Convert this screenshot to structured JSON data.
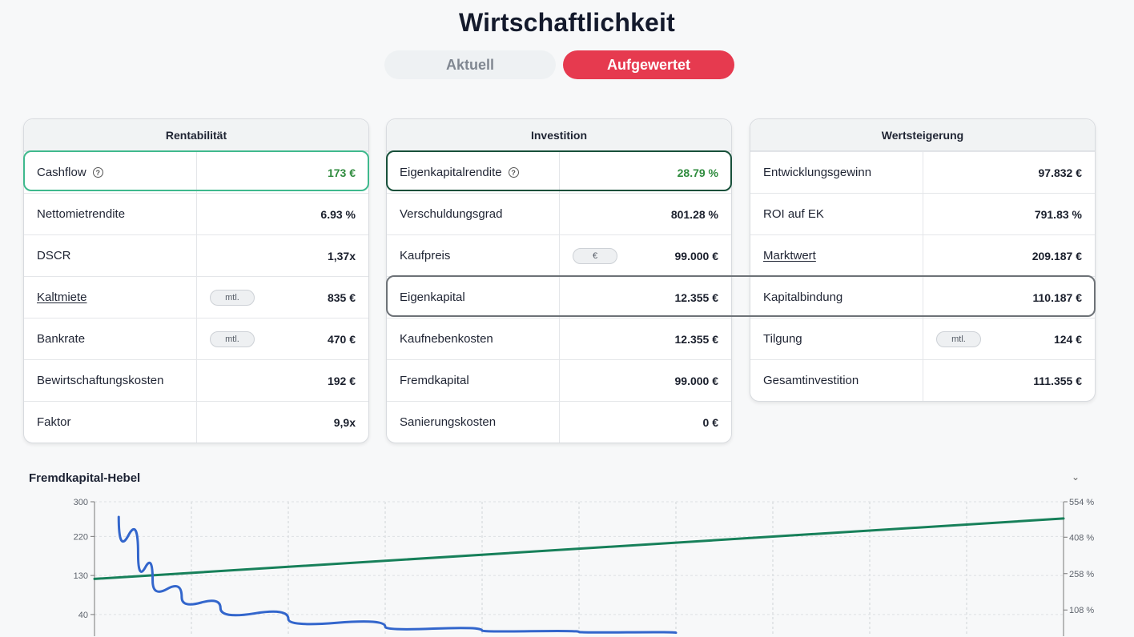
{
  "page": {
    "title": "Wirtschaftlichkeit"
  },
  "toggle": {
    "current": "Aktuell",
    "upgraded": "Aufgewertet"
  },
  "cards": [
    {
      "title": "Rentabilität",
      "rows": [
        {
          "label": "Cashflow",
          "value": "173 €",
          "info": true,
          "value_color": "green"
        },
        {
          "label": "Nettomietrendite",
          "value": "6.93 %"
        },
        {
          "label": "DSCR",
          "value": "1,37x"
        },
        {
          "label": "Kaltmiete",
          "value": "835 €",
          "link": true,
          "pill": "mtl."
        },
        {
          "label": "Bankrate",
          "value": "470 €",
          "pill": "mtl."
        },
        {
          "label": "Bewirtschaftungskosten",
          "value": "192 €"
        },
        {
          "label": "Faktor",
          "value": "9,9x"
        }
      ]
    },
    {
      "title": "Investition",
      "rows": [
        {
          "label": "Eigenkapitalrendite",
          "value": "28.79 %",
          "info": true,
          "value_color": "green"
        },
        {
          "label": "Verschuldungsgrad",
          "value": "801.28 %"
        },
        {
          "label": "Kaufpreis",
          "value": "99.000 €",
          "pill": "€"
        },
        {
          "label": "Eigenkapital",
          "value": "12.355 €"
        },
        {
          "label": "Kaufnebenkosten",
          "value": "12.355 €"
        },
        {
          "label": "Fremdkapital",
          "value": "99.000 €"
        },
        {
          "label": "Sanierungskosten",
          "value": "0 €"
        }
      ]
    },
    {
      "title": "Wertsteigerung",
      "rows": [
        {
          "label": "Entwicklungsgewinn",
          "value": "97.832 €"
        },
        {
          "label": "ROI auf EK",
          "value": "791.83 %"
        },
        {
          "label": "Marktwert",
          "value": "209.187 €",
          "link": true
        },
        {
          "label": "Kapitalbindung",
          "value": "110.187 €"
        },
        {
          "label": "Tilgung",
          "value": "124 €",
          "pill": "mtl."
        },
        {
          "label": "Gesamtinvestition",
          "value": "111.355 €"
        }
      ]
    }
  ],
  "colors": {
    "accent": "#e63a4f",
    "positive": "#2e8b3d",
    "highlight_green": "#3fb98d",
    "line_green": "#17805a",
    "line_blue": "#3366cc"
  },
  "chart_section": {
    "title": "Fremdkapital-Hebel",
    "collapse_icon": "chevron-down-icon"
  },
  "chart_data": {
    "type": "line",
    "left_axis": {
      "ticks": [
        "300",
        "220",
        "130",
        "40"
      ],
      "ylim": [
        -10,
        300
      ]
    },
    "right_axis": {
      "ticks": [
        "554 %",
        "408 %",
        "258 %",
        "108 %"
      ],
      "ylim": [
        0,
        554
      ]
    },
    "grid": true,
    "series": [
      {
        "axis": "right",
        "color": "#17805a",
        "x": [
          0,
          1
        ],
        "values": [
          236,
          485
        ]
      },
      {
        "axis": "left",
        "color": "#3366cc",
        "x": [
          0.025,
          0.045,
          0.06,
          0.09,
          0.13,
          0.2,
          0.3,
          0.4,
          0.5,
          0.6
        ],
        "values": [
          265,
          180,
          118,
          80,
          55,
          30,
          12,
          3,
          0,
          -2
        ]
      }
    ]
  }
}
